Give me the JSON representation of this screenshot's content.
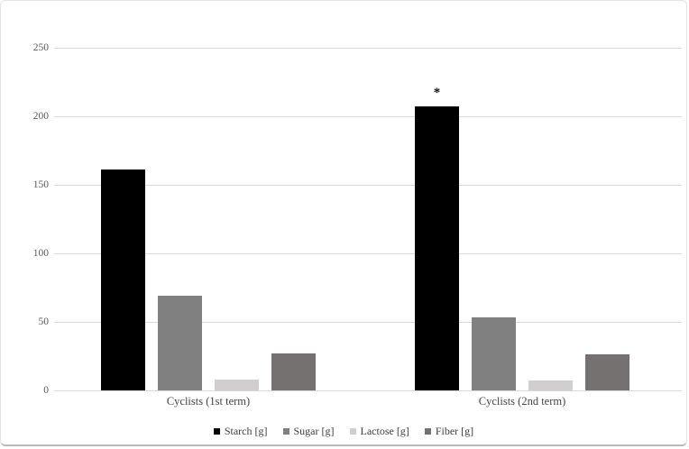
{
  "chart_data": {
    "type": "bar",
    "title": "",
    "xlabel": "",
    "ylabel": "",
    "categories": [
      "Cyclists (1st term)",
      "Cyclists (2nd term)"
    ],
    "series": [
      {
        "name": "Starch [g]",
        "color": "#000000",
        "values": [
          161,
          207
        ]
      },
      {
        "name": "Sugar [g]",
        "color": "#808080",
        "values": [
          69,
          53
        ]
      },
      {
        "name": "Lactose [g]",
        "color": "#d0cece",
        "values": [
          8,
          7
        ]
      },
      {
        "name": "Fiber [g]",
        "color": "#767171",
        "values": [
          27,
          26
        ]
      }
    ],
    "ylim": [
      0,
      250
    ],
    "yticks": [
      0,
      50,
      100,
      150,
      200,
      250
    ],
    "grid": true,
    "legend_position": "bottom",
    "annotations": [
      {
        "text": "*",
        "category_index": 1,
        "series_index": 0
      }
    ]
  },
  "style": {
    "gridline_color": "#d9d9d9",
    "tick_text_color": "#595959",
    "category_text_color": "#444444",
    "legend_text_color": "#3d3d3d",
    "background": "#ffffff",
    "border_color": "#e3e3e3"
  }
}
